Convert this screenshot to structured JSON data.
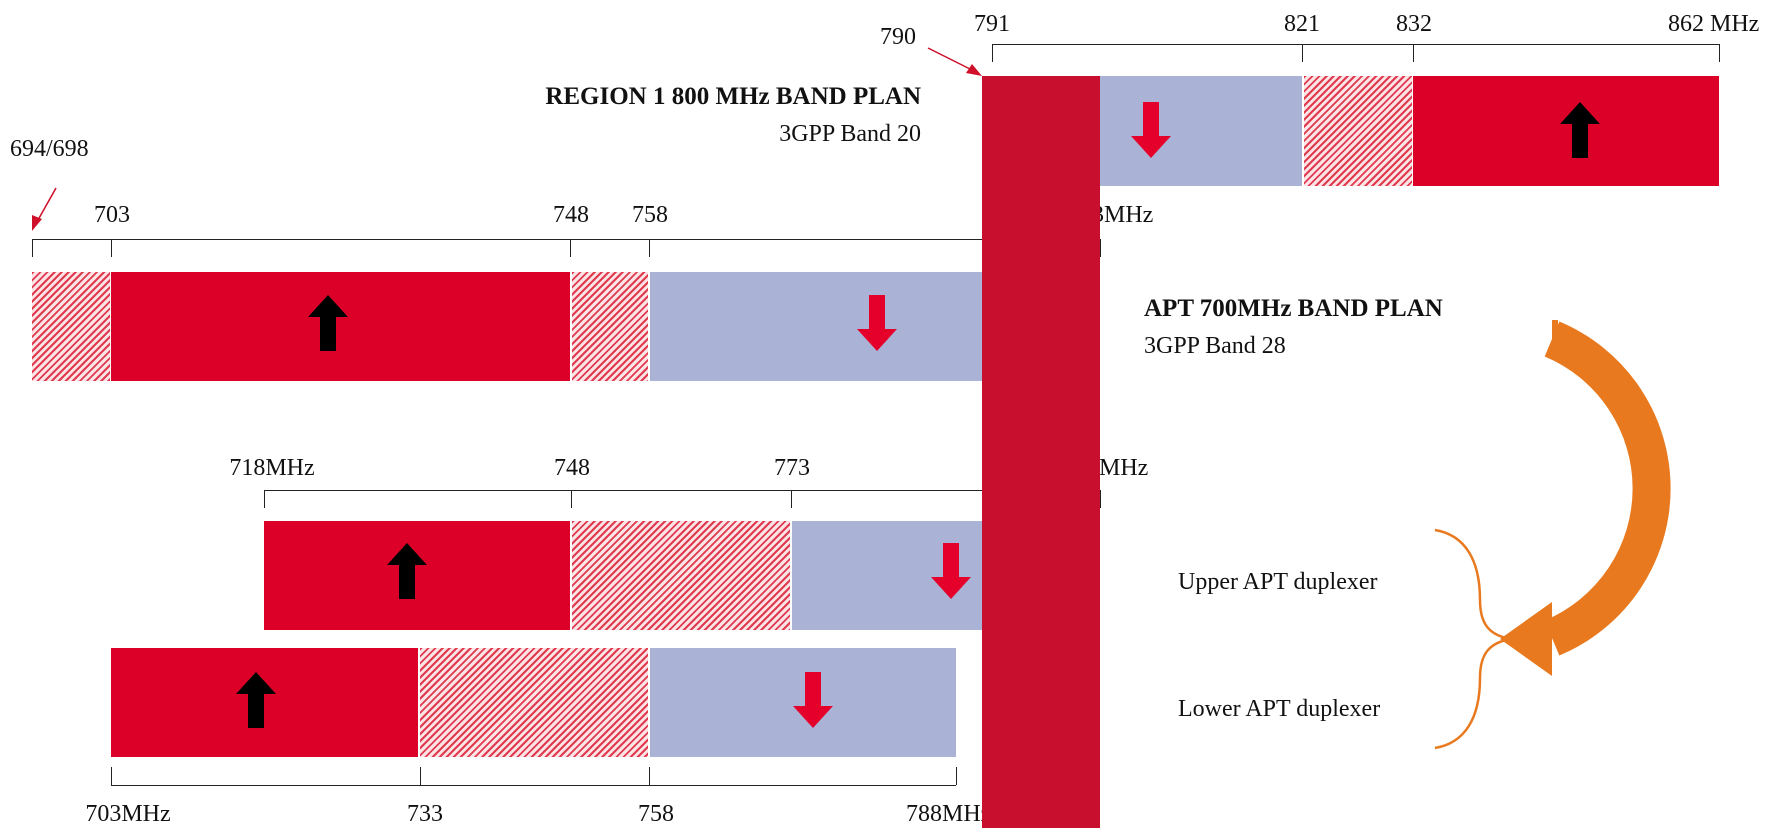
{
  "region1": {
    "title": "REGION 1 800 MHz BAND  PLAN",
    "subtitle": "3GPP Band 20",
    "pointer_label": "790",
    "ticks": [
      "791",
      "821",
      "832",
      "862 MHz"
    ]
  },
  "apt": {
    "title": "APT 700MHz BAND PLAN",
    "subtitle": "3GPP Band 28",
    "pointer_label": "694/698",
    "ticks": [
      "703",
      "748",
      "758",
      "803MHz"
    ]
  },
  "upper_duplexer": {
    "label": "Upper APT duplexer",
    "ticks": [
      "718MHz",
      "748",
      "773",
      "803MHz"
    ]
  },
  "lower_duplexer": {
    "label": "Lower APT duplexer",
    "ticks": [
      "703MHz",
      "733",
      "758",
      "788MHz"
    ]
  },
  "colors": {
    "uplink": "#dc0029",
    "downlink": "#aab3d6",
    "guard": "#e03a4f",
    "overlap_bar": "#c8102e",
    "transform_arrow": "#e8791e",
    "pointer": "#d0102a"
  },
  "icons": {
    "uplink_arrow": "up-arrow-icon",
    "downlink_arrow": "down-arrow-icon",
    "transform_arrow": "curved-arrow-icon",
    "brace": "brace-icon"
  }
}
